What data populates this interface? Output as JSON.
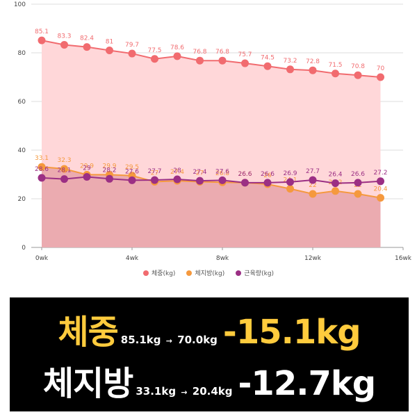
{
  "chart_data": {
    "type": "line",
    "x_ticks": [
      "0wk",
      "4wk",
      "8wk",
      "12wk",
      "16wk"
    ],
    "y_ticks": [
      "0",
      "20",
      "40",
      "60",
      "80",
      "100"
    ],
    "xlim": [
      0,
      16
    ],
    "ylim": [
      0,
      100
    ],
    "x": [
      0,
      1,
      2,
      3,
      4,
      5,
      6,
      7,
      8,
      9,
      10,
      11,
      12,
      13,
      14,
      15
    ],
    "series": [
      {
        "name": "체중(kg)",
        "color": "#f16b6f",
        "fill": "#ffd7d9",
        "values": [
          85.1,
          83.3,
          82.4,
          81,
          79.7,
          77.5,
          78.6,
          76.8,
          76.8,
          75.7,
          74.5,
          73.2,
          72.8,
          71.5,
          70.8,
          70
        ]
      },
      {
        "name": "체지방(kg)",
        "color": "#f5993e",
        "fill": "#ebabb0",
        "values": [
          33.1,
          32.3,
          29.9,
          29.9,
          29.5,
          27,
          27.4,
          27,
          26.8,
          26.6,
          26,
          24.1,
          22,
          23.2,
          22,
          20.4
        ],
        "labels": [
          "33.1",
          "32.3",
          "29.9",
          "29.9",
          "29.5",
          "27",
          "27.4",
          "27",
          "26.8",
          "26.6",
          "26",
          "24.1",
          "22",
          "23.2",
          "22",
          "20.4"
        ]
      },
      {
        "name": "근육량(kg)",
        "color": "#9b2f84",
        "values": [
          28.6,
          28.1,
          29,
          28.2,
          27.6,
          27.7,
          28,
          27.4,
          27.6,
          26.6,
          26.6,
          26.9,
          27.7,
          26.4,
          26.6,
          27.2
        ],
        "labels": [
          "28.6",
          "28.1",
          "29",
          "28.2",
          "27.6",
          "27.7",
          "28",
          "27.4",
          "27.6",
          "26.6",
          "26.6",
          "26.9",
          "27.7",
          "26.4",
          "26.6",
          "27.2"
        ]
      }
    ]
  },
  "legend": [
    {
      "label": "체중(kg)",
      "color": "#f16b6f"
    },
    {
      "label": "체지방(kg)",
      "color": "#f5993e"
    },
    {
      "label": "근육량(kg)",
      "color": "#9b2f84"
    }
  ],
  "banner": {
    "weight": {
      "word": "체중",
      "from": "85.1kg",
      "arrow": "→",
      "to": "70.0kg",
      "change": "-15.1kg"
    },
    "fat": {
      "word": "체지방",
      "from": "33.1kg",
      "arrow": "→",
      "to": "20.4kg",
      "change": "-12.7kg"
    }
  }
}
